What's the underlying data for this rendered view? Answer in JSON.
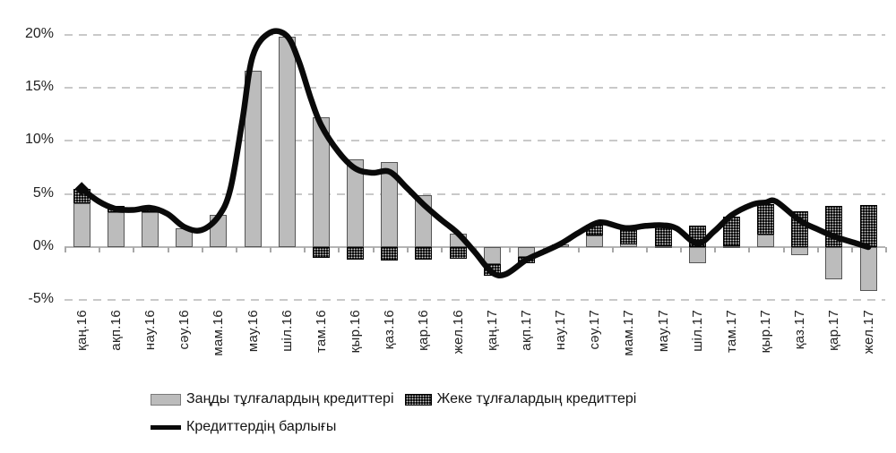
{
  "chart_data": {
    "type": "combo",
    "title": "",
    "xlabel": "",
    "ylabel": "",
    "categories": [
      "қаң.16",
      "ақп.16",
      "нау.16",
      "сәу.16",
      "мам.16",
      "мау.16",
      "шіл.16",
      "там.16",
      "қыр.16",
      "қаз.16",
      "қар.16",
      "жел.16",
      "қаң.17",
      "ақп.17",
      "нау.17",
      "сәу.17",
      "мам.17",
      "мау.17",
      "шіл.17",
      "там.17",
      "қыр.17",
      "қаз.17",
      "қар.17",
      "жел.17"
    ],
    "series": [
      {
        "name": "Заңды тұлғалардың кредиттері",
        "type": "bar",
        "stacked": true,
        "color": "#bcbcbc",
        "values": [
          4.1,
          3.3,
          3.3,
          1.8,
          3.0,
          16.6,
          19.8,
          12.2,
          8.3,
          8.0,
          4.9,
          1.3,
          -1.6,
          -0.9,
          0.25,
          1.1,
          0.3,
          0.1,
          -1.5,
          0.1,
          1.2,
          -0.75,
          -3.05,
          -4.1
        ]
      },
      {
        "name": "Жеке тұлғалардың кредиттері",
        "type": "bar",
        "stacked": true,
        "color": "#0a0a0a",
        "pattern": "black-dotted",
        "values": [
          1.4,
          0.6,
          0.45,
          0,
          0,
          0,
          0,
          -1.0,
          -1.2,
          -1.3,
          -1.2,
          -1.1,
          -1.1,
          -0.6,
          0,
          1.0,
          1.6,
          1.9,
          2.0,
          2.8,
          2.85,
          3.4,
          3.9,
          4.0
        ]
      },
      {
        "name": "Кредиттердің барлығы",
        "type": "line",
        "smooth": true,
        "color": "#0a0a0a",
        "values": [
          5.5,
          3.6,
          3.7,
          1.9,
          2.9,
          18.0,
          19.9,
          11.5,
          7.4,
          7.1,
          4.0,
          1.3,
          -2.4,
          -1.2,
          0.3,
          2.2,
          1.85,
          2.05,
          0.35,
          3.0,
          4.2,
          2.5,
          1.0,
          0.0
        ]
      }
    ],
    "line_samples": [
      [
        0,
        5.5
      ],
      [
        0.5,
        4.3
      ],
      [
        1,
        3.6
      ],
      [
        1.5,
        3.5
      ],
      [
        2,
        3.7
      ],
      [
        2.5,
        3.15
      ],
      [
        3,
        1.9
      ],
      [
        3.5,
        1.6
      ],
      [
        4,
        2.9
      ],
      [
        4.35,
        5.5
      ],
      [
        4.7,
        12.0
      ],
      [
        5,
        18.0
      ],
      [
        5.5,
        20.2
      ],
      [
        6,
        19.9
      ],
      [
        6.35,
        17.5
      ],
      [
        6.7,
        14.0
      ],
      [
        7,
        11.5
      ],
      [
        7.5,
        9.0
      ],
      [
        8,
        7.4
      ],
      [
        8.5,
        7.0
      ],
      [
        9,
        7.1
      ],
      [
        9.5,
        5.6
      ],
      [
        10,
        4.0
      ],
      [
        10.5,
        2.6
      ],
      [
        11,
        1.3
      ],
      [
        11.5,
        -0.5
      ],
      [
        12,
        -2.4
      ],
      [
        12.4,
        -2.55
      ],
      [
        13,
        -1.2
      ],
      [
        13.5,
        -0.45
      ],
      [
        14,
        0.3
      ],
      [
        14.5,
        1.3
      ],
      [
        15,
        2.2
      ],
      [
        15.3,
        2.3
      ],
      [
        15.9,
        1.8
      ],
      [
        16.5,
        2.0
      ],
      [
        17,
        2.05
      ],
      [
        17.4,
        1.75
      ],
      [
        18,
        0.35
      ],
      [
        18.5,
        1.5
      ],
      [
        19,
        3.0
      ],
      [
        19.6,
        4.0
      ],
      [
        20,
        4.2
      ],
      [
        20.3,
        4.3
      ],
      [
        21,
        2.5
      ],
      [
        21.5,
        1.7
      ],
      [
        22,
        1.0
      ],
      [
        22.5,
        0.5
      ],
      [
        23,
        0.0
      ]
    ],
    "y_axis": {
      "min": -5,
      "max": 20,
      "tick_labels": [
        "20%",
        "15%",
        "10%",
        "5%",
        "0%",
        "-5%"
      ],
      "tick_values": [
        20,
        15,
        10,
        5,
        0,
        -5
      ],
      "unit": "%"
    },
    "grid": "dashed-horizontal",
    "legend_position": "bottom"
  },
  "colors": {
    "bar_legal": "#bcbcbc",
    "bar_legal_border": "#565656",
    "bar_individual": "#0a0a0a",
    "total_line": "#0a0a0a",
    "gridline": "#c9c9c9",
    "axis": "#b5b5b5",
    "text": "#222222",
    "background": "#ffffff"
  }
}
